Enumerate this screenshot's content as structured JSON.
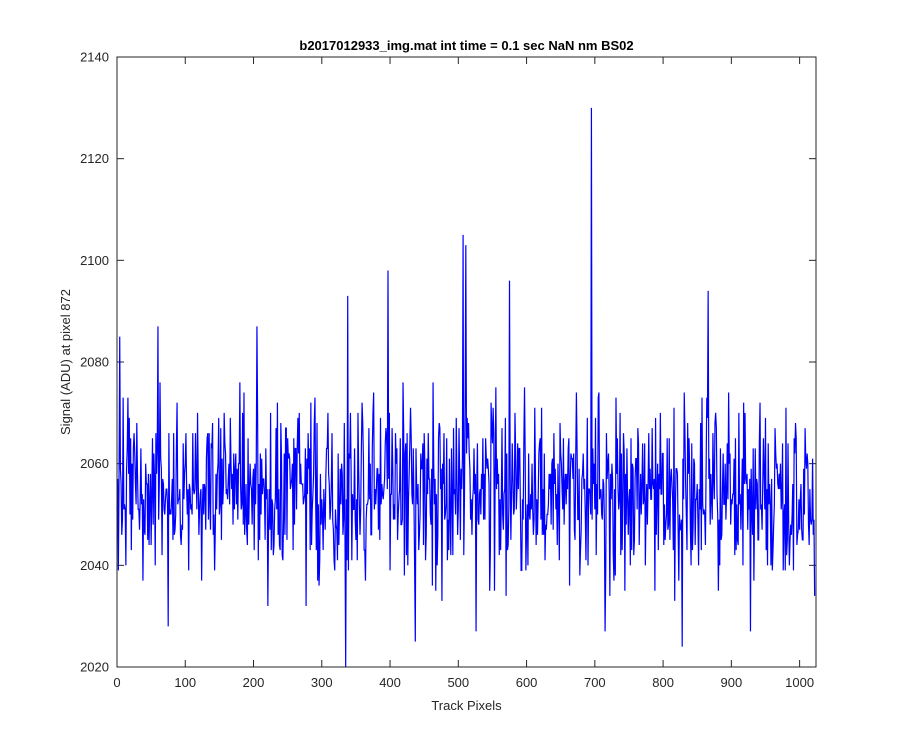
{
  "chart_data": {
    "type": "line",
    "title": "b2017012933_img.mat int time = 0.1 sec  NaN nm BS02",
    "xlabel": "Track Pixels",
    "ylabel": "Signal (ADU) at pixel 872",
    "xlim": [
      0,
      1024
    ],
    "ylim": [
      2020,
      2140
    ],
    "xticks": [
      0,
      100,
      200,
      300,
      400,
      500,
      600,
      700,
      800,
      900,
      1000
    ],
    "yticks": [
      2020,
      2040,
      2060,
      2080,
      2100,
      2120,
      2140
    ],
    "xtick_labels": [
      "0",
      "100",
      "200",
      "300",
      "400",
      "500",
      "600",
      "700",
      "800",
      "900",
      "1000"
    ],
    "ytick_labels": [
      "2020",
      "2040",
      "2060",
      "2080",
      "2100",
      "2120",
      "2140"
    ],
    "grid": false,
    "series": [
      {
        "color": "#0000ff",
        "baseline_mean": 2052,
        "noise_range": [
          2030,
          2080
        ],
        "notable_points": [
          {
            "x": 4,
            "y": 2085
          },
          {
            "x": 60,
            "y": 2087
          },
          {
            "x": 75,
            "y": 2028
          },
          {
            "x": 205,
            "y": 2087
          },
          {
            "x": 335,
            "y": 2020
          },
          {
            "x": 338,
            "y": 2093
          },
          {
            "x": 397,
            "y": 2098
          },
          {
            "x": 437,
            "y": 2025
          },
          {
            "x": 507,
            "y": 2105
          },
          {
            "x": 511,
            "y": 2103
          },
          {
            "x": 526,
            "y": 2027
          },
          {
            "x": 575,
            "y": 2096
          },
          {
            "x": 695,
            "y": 2130
          },
          {
            "x": 715,
            "y": 2027
          },
          {
            "x": 828,
            "y": 2024
          },
          {
            "x": 866,
            "y": 2094
          },
          {
            "x": 928,
            "y": 2027
          },
          {
            "x": 1022,
            "y": 2034
          }
        ]
      }
    ]
  }
}
